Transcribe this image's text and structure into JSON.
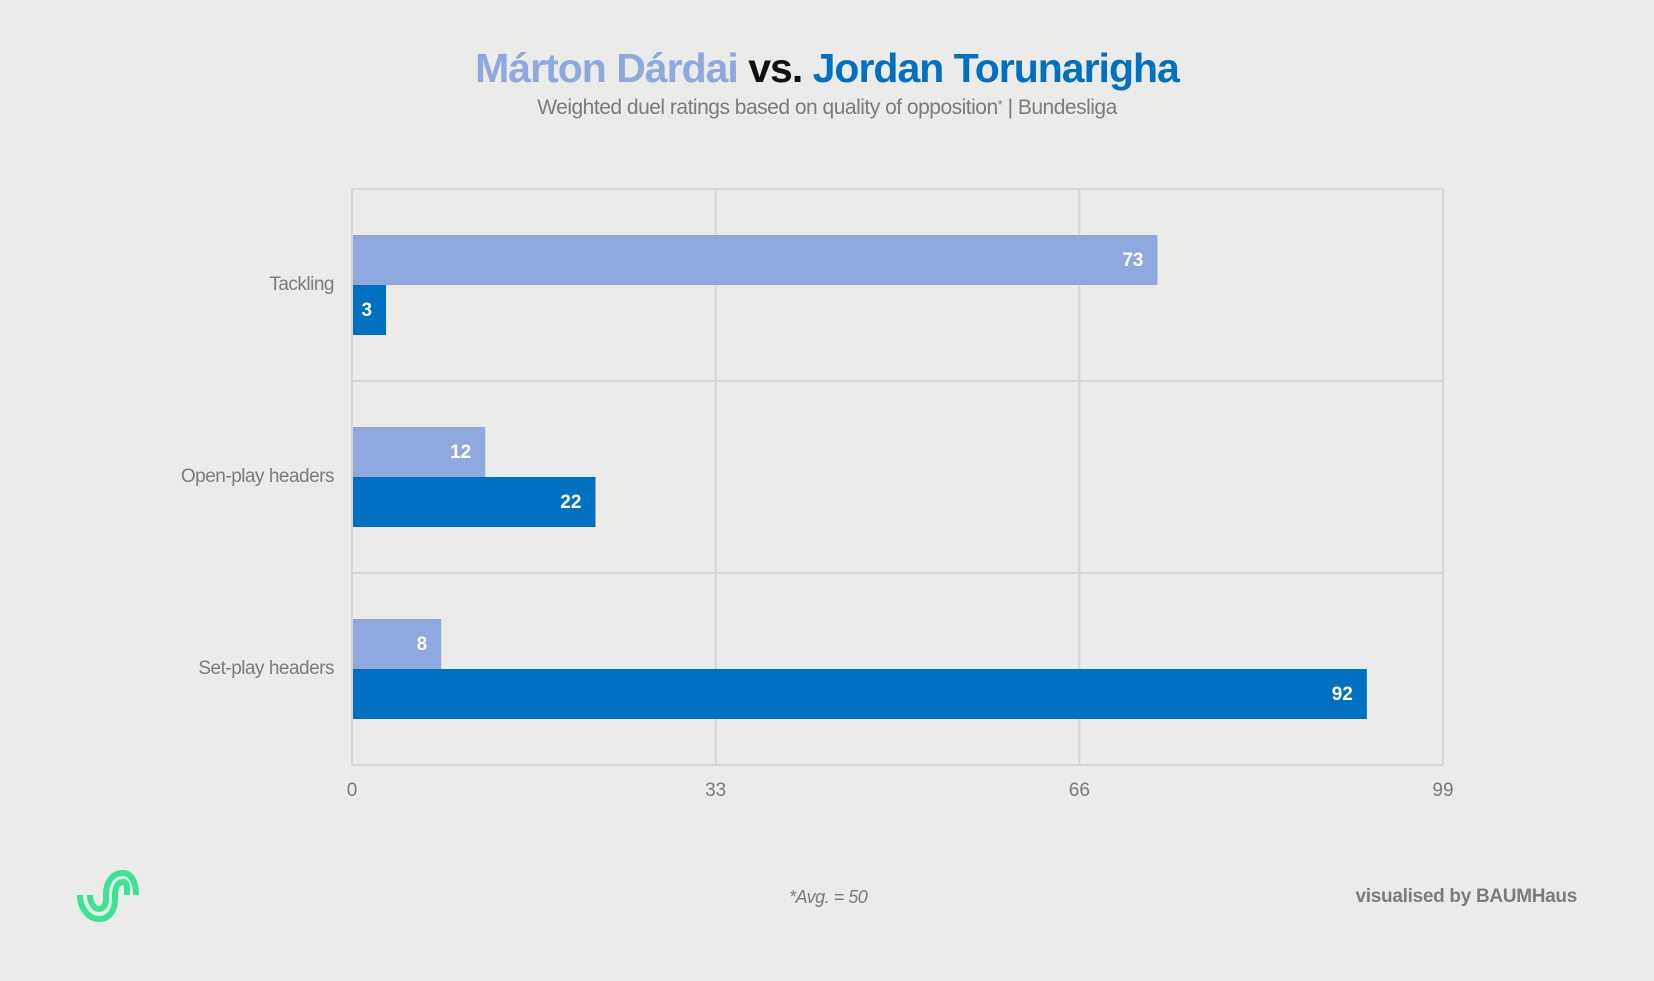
{
  "header": {
    "player1": "Márton Dárdai",
    "vs": "vs.",
    "player2": "Jordan Torunarigha",
    "subtitle_main": "Weighted duel ratings based on quality of opposition",
    "subtitle_star": "*",
    "subtitle_league": "| Bundesliga"
  },
  "colors": {
    "player1": "#8fa9de",
    "player2": "#0070c0",
    "grid": "#d6d6d4",
    "label": "#7c7c7c",
    "background": "#ebebe9",
    "logo": "#3de394"
  },
  "chart_data": {
    "type": "bar",
    "orientation": "horizontal",
    "categories": [
      "Tackling",
      "Open-play headers",
      "Set-play headers"
    ],
    "series": [
      {
        "name": "Márton Dárdai",
        "values": [
          73,
          12,
          8
        ]
      },
      {
        "name": "Jordan Torunarigha",
        "values": [
          3,
          22,
          92
        ]
      }
    ],
    "xlim": [
      0,
      99
    ],
    "xticks": [
      0,
      33,
      66,
      99
    ],
    "xtick_labels": [
      "0",
      "33",
      "66",
      "99"
    ],
    "grid": true
  },
  "footer": {
    "footnote": "*Avg. = 50",
    "credit": "visualised by BAUMHaus",
    "logo_icon": "baumhaus-logo-icon"
  }
}
